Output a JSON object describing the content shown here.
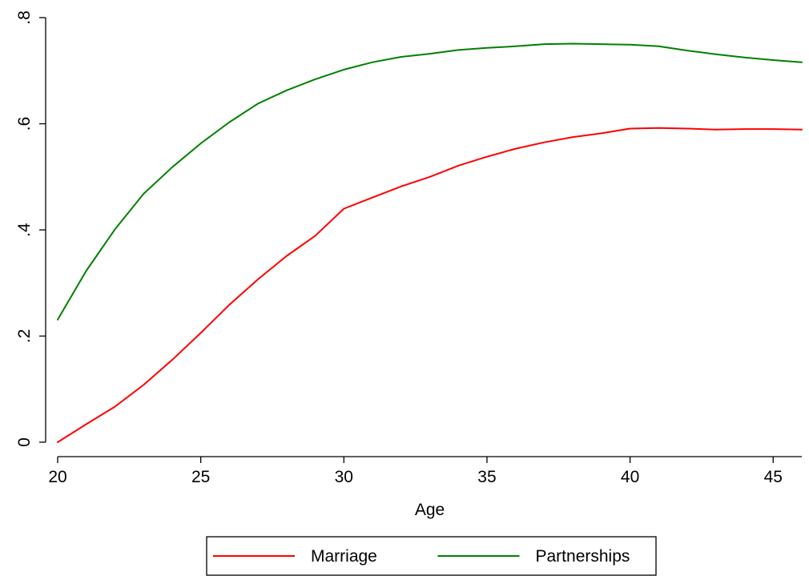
{
  "chart_data": {
    "type": "line",
    "title": "",
    "xlabel": "Age",
    "ylabel": "",
    "xlim": [
      20,
      46
    ],
    "ylim": [
      0,
      0.8
    ],
    "x_ticks": [
      20,
      25,
      30,
      35,
      40,
      45
    ],
    "x_tick_labels": [
      "20",
      "25",
      "30",
      "35",
      "40",
      "45"
    ],
    "y_ticks": [
      0,
      0.2,
      0.4,
      0.6,
      0.8
    ],
    "y_tick_labels": [
      "0",
      ".2",
      ".4",
      ".6",
      ".8"
    ],
    "grid": false,
    "legend_position": "bottom",
    "x": [
      20,
      21,
      22,
      23,
      24,
      25,
      26,
      27,
      28,
      29,
      30,
      31,
      32,
      33,
      34,
      35,
      36,
      37,
      38,
      39,
      40,
      41,
      42,
      43,
      44,
      45,
      46
    ],
    "series": [
      {
        "name": "Marriage",
        "color": "#ff0000",
        "values": [
          0.0,
          0.034,
          0.067,
          0.108,
          0.155,
          0.206,
          0.259,
          0.307,
          0.351,
          0.389,
          0.44,
          0.461,
          0.482,
          0.5,
          0.521,
          0.538,
          0.553,
          0.565,
          0.575,
          0.582,
          0.591,
          0.592,
          0.591,
          0.589,
          0.59,
          0.59,
          0.589
        ]
      },
      {
        "name": "Partnerships",
        "color": "#008000",
        "values": [
          0.231,
          0.323,
          0.401,
          0.468,
          0.518,
          0.563,
          0.603,
          0.638,
          0.663,
          0.684,
          0.702,
          0.716,
          0.726,
          0.732,
          0.739,
          0.743,
          0.746,
          0.75,
          0.751,
          0.75,
          0.749,
          0.746,
          0.738,
          0.731,
          0.725,
          0.72,
          0.716
        ]
      }
    ]
  }
}
